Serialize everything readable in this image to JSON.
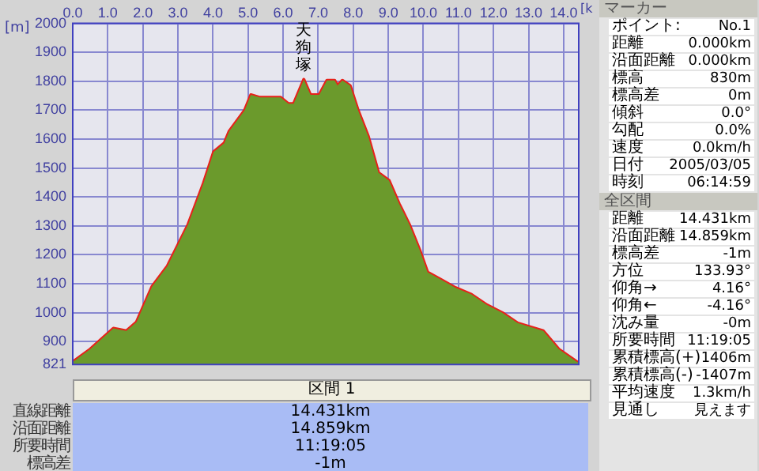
{
  "chart_data": {
    "type": "area",
    "xlabel": "[k",
    "ylabel": "[m]",
    "x": [
      0,
      0.5,
      1.16,
      1.53,
      1.82,
      2.26,
      2.7,
      3.29,
      3.73,
      4.02,
      4.32,
      4.46,
      4.9,
      5.08,
      5.34,
      5.93,
      6.15,
      6.3,
      6.59,
      6.78,
      7.03,
      7.25,
      7.47,
      7.55,
      7.69,
      7.91,
      8.14,
      8.43,
      8.72,
      9.02,
      9.31,
      9.6,
      9.9,
      10.12,
      10.48,
      10.92,
      11.37,
      11.81,
      12.25,
      12.69,
      13.42,
      13.86,
      14.38,
      14.431
    ],
    "series": [
      {
        "color": "#6b9a2c",
        "values": [
          830,
          874,
          946,
          937,
          968,
          1090,
          1161,
          1305,
          1448,
          1556,
          1586,
          1627,
          1699,
          1753,
          1744,
          1744,
          1722,
          1722,
          1806,
          1753,
          1753,
          1803,
          1803,
          1785,
          1803,
          1785,
          1699,
          1609,
          1484,
          1457,
          1376,
          1305,
          1215,
          1140,
          1116,
          1086,
          1063,
          1027,
          1000,
          964,
          937,
          874,
          830,
          829
        ]
      },
      {
        "type": "line",
        "color": "#e8201a",
        "values": [
          830,
          874,
          946,
          937,
          968,
          1090,
          1161,
          1305,
          1448,
          1556,
          1586,
          1627,
          1699,
          1753,
          1744,
          1744,
          1722,
          1722,
          1806,
          1753,
          1753,
          1803,
          1803,
          1785,
          1803,
          1785,
          1699,
          1609,
          1484,
          1457,
          1376,
          1305,
          1215,
          1140,
          1116,
          1086,
          1063,
          1027,
          1000,
          964,
          937,
          874,
          830,
          829
        ]
      }
    ],
    "xlim": [
      0,
      14.431
    ],
    "xticks": [
      {
        "value": 0,
        "label": "0.0"
      },
      {
        "value": 1,
        "label": "1.0"
      },
      {
        "value": 2,
        "label": "2.0"
      },
      {
        "value": 3,
        "label": "3.0"
      },
      {
        "value": 4,
        "label": "4.0"
      },
      {
        "value": 5,
        "label": "5.0"
      },
      {
        "value": 6,
        "label": "6.0"
      },
      {
        "value": 7,
        "label": "7.0"
      },
      {
        "value": 8,
        "label": "8.0"
      },
      {
        "value": 9,
        "label": "9.0"
      },
      {
        "value": 10,
        "label": "10.0"
      },
      {
        "value": 11,
        "label": "11.0"
      },
      {
        "value": 12,
        "label": "12.0"
      },
      {
        "value": 13,
        "label": "13.0"
      },
      {
        "value": 14,
        "label": "14.0"
      }
    ],
    "ylim": [
      821,
      2000
    ],
    "yticks": [
      821,
      900,
      1000,
      1100,
      1200,
      1300,
      1400,
      1500,
      1600,
      1700,
      1800,
      1900,
      2000
    ],
    "grid": true,
    "annotations": [
      {
        "text": "天狗塚",
        "x": 6.59,
        "y": 1806
      },
      "マーカー",
      "ポイント:",
      "No.1",
      "距離",
      "0.000km",
      "沿面距離",
      "0.000km",
      "標高",
      "830m",
      "標高差",
      "0m",
      "傾斜",
      "0.0°",
      "勾配",
      "0.0%",
      "速度",
      "0.0km/h",
      "日付",
      "2005/03/05",
      "時刻",
      "06:14:59",
      "全区間",
      "距離",
      "14.431km",
      "沿面距離",
      "14.859km",
      "標高差",
      "-1m",
      "方位",
      "133.93°",
      "仰角→",
      "4.16°",
      "仰角←",
      "-4.16°",
      "沈み量",
      "-0m",
      "所要時間",
      "11:19:05",
      "累積標高(+)",
      "1406m",
      "累積標高(-)",
      "-1407m",
      "平均速度",
      "1.3km/h",
      "見通し",
      "見えます",
      "区間 1",
      "直線距離",
      "14.431km",
      "沿面距離",
      "14.859km",
      "所要時間",
      "11:19:05",
      "標高差",
      "-1m"
    ]
  }
}
